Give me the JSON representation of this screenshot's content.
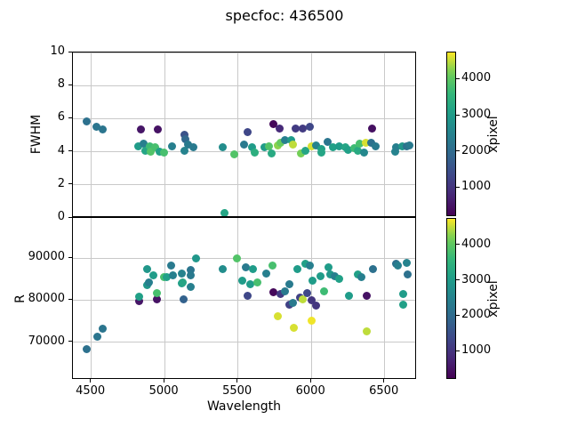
{
  "title": "specfoc: 436500",
  "xlabel": "Wavelength",
  "colormap_colors": {
    "viridis_lo": "#440154",
    "viridis_mid": "#21918c",
    "viridis_hi": "#fde725"
  },
  "chart_data": [
    {
      "type": "scatter",
      "title": "",
      "xlabel": "",
      "ylabel": "FWHM",
      "xlim": [
        4375,
        6720
      ],
      "ylim": [
        0,
        10
      ],
      "xticks": [
        4500,
        5000,
        5500,
        6000,
        6500
      ],
      "yticks": [
        0,
        2,
        4,
        6,
        8,
        10
      ],
      "grid": true,
      "legend": "none",
      "colorbar": {
        "label": "xpixel",
        "ticks": [
          1000,
          2000,
          3000,
          4000
        ],
        "vmin": 200,
        "vmax": 4750,
        "colormap": "viridis"
      },
      "series_note": "points are [wavelength, fwhm, xpixel]; xpixel sets marker color via viridis colorbar",
      "points": [
        [
          4468,
          5.85,
          2100
        ],
        [
          4534,
          5.5,
          2200
        ],
        [
          4578,
          5.35,
          2200
        ],
        [
          4836,
          5.35,
          500
        ],
        [
          4952,
          5.35,
          450
        ],
        [
          4819,
          4.35,
          3000
        ],
        [
          4858,
          4.5,
          2400
        ],
        [
          4868,
          4.05,
          3200
        ],
        [
          4898,
          4.35,
          3700
        ],
        [
          4908,
          4.0,
          3900
        ],
        [
          4938,
          4.25,
          3800
        ],
        [
          4968,
          4.0,
          3100
        ],
        [
          4998,
          3.95,
          3800
        ],
        [
          5048,
          4.35,
          2400
        ],
        [
          5138,
          5.05,
          1500
        ],
        [
          5141,
          4.75,
          1900
        ],
        [
          5158,
          4.45,
          2300
        ],
        [
          5198,
          4.25,
          2300
        ],
        [
          5138,
          4.05,
          2500
        ],
        [
          5395,
          4.3,
          2700
        ],
        [
          5474,
          3.85,
          3900
        ],
        [
          5410,
          0.3,
          3200
        ],
        [
          5543,
          4.45,
          2300
        ],
        [
          5563,
          5.2,
          1300
        ],
        [
          5594,
          4.3,
          3000
        ],
        [
          5613,
          3.95,
          3400
        ],
        [
          5682,
          4.3,
          3000
        ],
        [
          5712,
          4.35,
          3900
        ],
        [
          5732,
          3.9,
          3300
        ],
        [
          5742,
          5.65,
          300
        ],
        [
          5782,
          5.4,
          800
        ],
        [
          5772,
          4.4,
          4300
        ],
        [
          5792,
          4.55,
          4100
        ],
        [
          5822,
          4.7,
          2400
        ],
        [
          5862,
          4.7,
          3000
        ],
        [
          5872,
          4.45,
          4500
        ],
        [
          5891,
          5.4,
          1100
        ],
        [
          5941,
          5.4,
          1100
        ],
        [
          5991,
          5.5,
          1300
        ],
        [
          5931,
          3.9,
          4200
        ],
        [
          5961,
          4.05,
          3200
        ],
        [
          6001,
          4.35,
          4600
        ],
        [
          6031,
          4.4,
          2500
        ],
        [
          6071,
          4.15,
          3100
        ],
        [
          6071,
          3.95,
          3200
        ],
        [
          6110,
          4.6,
          2200
        ],
        [
          6150,
          4.25,
          3100
        ],
        [
          6190,
          4.35,
          3000
        ],
        [
          6230,
          4.25,
          3200
        ],
        [
          6250,
          4.1,
          3100
        ],
        [
          6290,
          4.2,
          3700
        ],
        [
          6319,
          4.05,
          3300
        ],
        [
          6329,
          4.5,
          3800
        ],
        [
          6369,
          4.55,
          4600
        ],
        [
          6359,
          3.95,
          2600
        ],
        [
          6414,
          5.4,
          400
        ],
        [
          6409,
          4.55,
          2100
        ],
        [
          6439,
          4.35,
          2300
        ],
        [
          6569,
          4.0,
          2500
        ],
        [
          6579,
          4.3,
          2400
        ],
        [
          6619,
          4.35,
          2900
        ],
        [
          6649,
          4.35,
          2100
        ],
        [
          6667,
          4.4,
          2300
        ]
      ]
    },
    {
      "type": "scatter",
      "title": "",
      "xlabel": "Wavelength",
      "ylabel": "R",
      "xlim": [
        4375,
        6720
      ],
      "ylim": [
        61000,
        99600
      ],
      "xticks": [
        4500,
        5000,
        5500,
        6000,
        6500
      ],
      "yticks": [
        70000,
        80000,
        90000
      ],
      "grid": true,
      "legend": "none",
      "colorbar": {
        "label": "xpixel",
        "ticks": [
          1000,
          2000,
          3000,
          4000
        ],
        "vmin": 200,
        "vmax": 4750,
        "colormap": "viridis"
      },
      "series_note": "points are [wavelength, R, xpixel]",
      "points": [
        [
          4470,
          68300,
          2100
        ],
        [
          4540,
          71300,
          2200
        ],
        [
          4575,
          73300,
          2200
        ],
        [
          4829,
          79800,
          500
        ],
        [
          4829,
          80900,
          3100
        ],
        [
          4948,
          80200,
          450
        ],
        [
          4948,
          81600,
          3800
        ],
        [
          4878,
          83500,
          2900
        ],
        [
          4882,
          87500,
          2900
        ],
        [
          4894,
          84300,
          2400
        ],
        [
          4921,
          85900,
          3000
        ],
        [
          4997,
          85400,
          3800
        ],
        [
          5016,
          85400,
          3100
        ],
        [
          5046,
          88200,
          2300
        ],
        [
          5056,
          86000,
          2400
        ],
        [
          5116,
          86400,
          2500
        ],
        [
          5120,
          84100,
          3000
        ],
        [
          5126,
          84300,
          3200
        ],
        [
          5176,
          87100,
          2200
        ],
        [
          5176,
          86000,
          2300
        ],
        [
          5176,
          83200,
          2400
        ],
        [
          5130,
          80150,
          1800
        ],
        [
          5215,
          89900,
          2900
        ],
        [
          5395,
          87500,
          2700
        ],
        [
          5490,
          89900,
          3900
        ],
        [
          5530,
          84700,
          3000
        ],
        [
          5553,
          87900,
          2300
        ],
        [
          5583,
          83900,
          3000
        ],
        [
          5603,
          87500,
          3000
        ],
        [
          5633,
          84300,
          3800
        ],
        [
          5563,
          81100,
          1300
        ],
        [
          5693,
          86400,
          2400
        ],
        [
          5733,
          88200,
          3800
        ],
        [
          5742,
          81800,
          300
        ],
        [
          5772,
          76100,
          4600
        ],
        [
          5792,
          81400,
          1100
        ],
        [
          5822,
          82100,
          2300
        ],
        [
          5852,
          83900,
          2300
        ],
        [
          5852,
          78900,
          1200
        ],
        [
          5872,
          79300,
          2300
        ],
        [
          5881,
          73500,
          4600
        ],
        [
          5902,
          87500,
          3000
        ],
        [
          5921,
          80700,
          1200
        ],
        [
          5941,
          80200,
          4500
        ],
        [
          5961,
          88600,
          3100
        ],
        [
          5970,
          81600,
          1300
        ],
        [
          5991,
          88200,
          2400
        ],
        [
          6000,
          80000,
          1000
        ],
        [
          6000,
          75100,
          4700
        ],
        [
          6011,
          84600,
          3000
        ],
        [
          6030,
          78700,
          1000
        ],
        [
          6061,
          85700,
          3000
        ],
        [
          6089,
          82200,
          3700
        ],
        [
          6120,
          87900,
          3000
        ],
        [
          6130,
          86100,
          2900
        ],
        [
          6160,
          85700,
          2400
        ],
        [
          6190,
          85000,
          3100
        ],
        [
          6259,
          81100,
          3000
        ],
        [
          6319,
          86100,
          3100
        ],
        [
          6339,
          85400,
          2400
        ],
        [
          6379,
          81100,
          450
        ],
        [
          6379,
          72600,
          4500
        ],
        [
          6419,
          87500,
          2100
        ],
        [
          6579,
          88600,
          2100
        ],
        [
          6589,
          88200,
          2400
        ],
        [
          6649,
          88900,
          2500
        ],
        [
          6659,
          86100,
          2100
        ],
        [
          6629,
          81400,
          3000
        ],
        [
          6629,
          78900,
          3100
        ]
      ]
    }
  ]
}
